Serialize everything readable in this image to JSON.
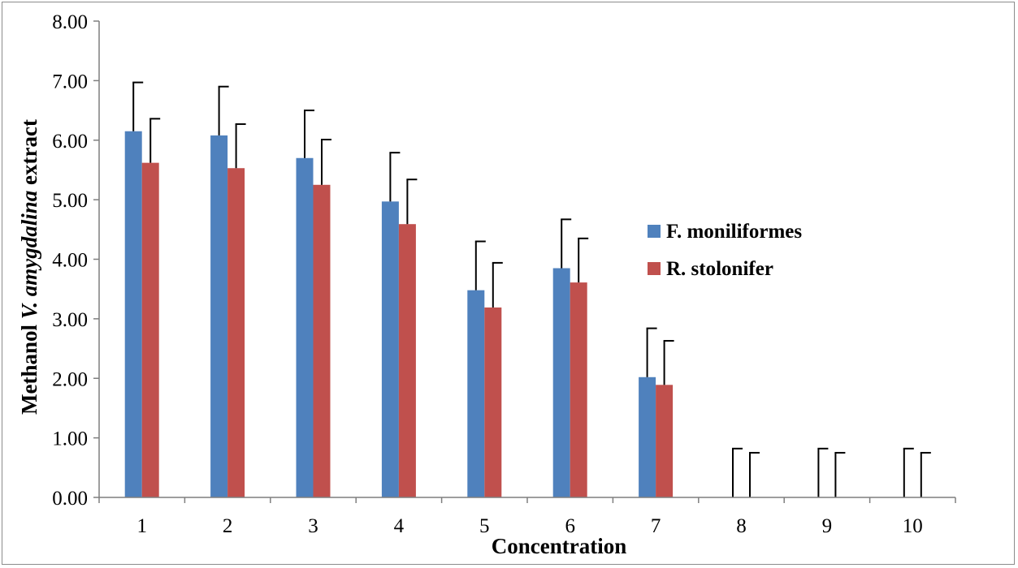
{
  "chart_data": {
    "type": "bar",
    "title": "",
    "xlabel": "Concentration",
    "ylabel_parts": [
      "Methanol ",
      "V. amygdalina",
      " extract"
    ],
    "categories": [
      "1",
      "2",
      "3",
      "4",
      "5",
      "6",
      "7",
      "8",
      "9",
      "10"
    ],
    "ylim": [
      0,
      8
    ],
    "yticks": [
      "0.00",
      "1.00",
      "2.00",
      "3.00",
      "4.00",
      "5.00",
      "6.00",
      "7.00",
      "8.00"
    ],
    "grid": false,
    "legend_position": "right",
    "series": [
      {
        "name": "F. moniliformes",
        "color": "#4f81bd",
        "values": [
          6.15,
          6.08,
          5.7,
          4.97,
          3.48,
          3.85,
          2.02,
          0,
          0,
          0
        ],
        "error": [
          0.82,
          0.82,
          0.8,
          0.82,
          0.82,
          0.82,
          0.82,
          0.82,
          0.82,
          0.82
        ]
      },
      {
        "name": "R. stolonifer",
        "color": "#c0504d",
        "values": [
          5.62,
          5.53,
          5.25,
          4.59,
          3.19,
          3.61,
          1.89,
          0,
          0,
          0
        ],
        "error": [
          0.74,
          0.74,
          0.76,
          0.75,
          0.75,
          0.74,
          0.74,
          0.75,
          0.75,
          0.75
        ]
      }
    ]
  }
}
